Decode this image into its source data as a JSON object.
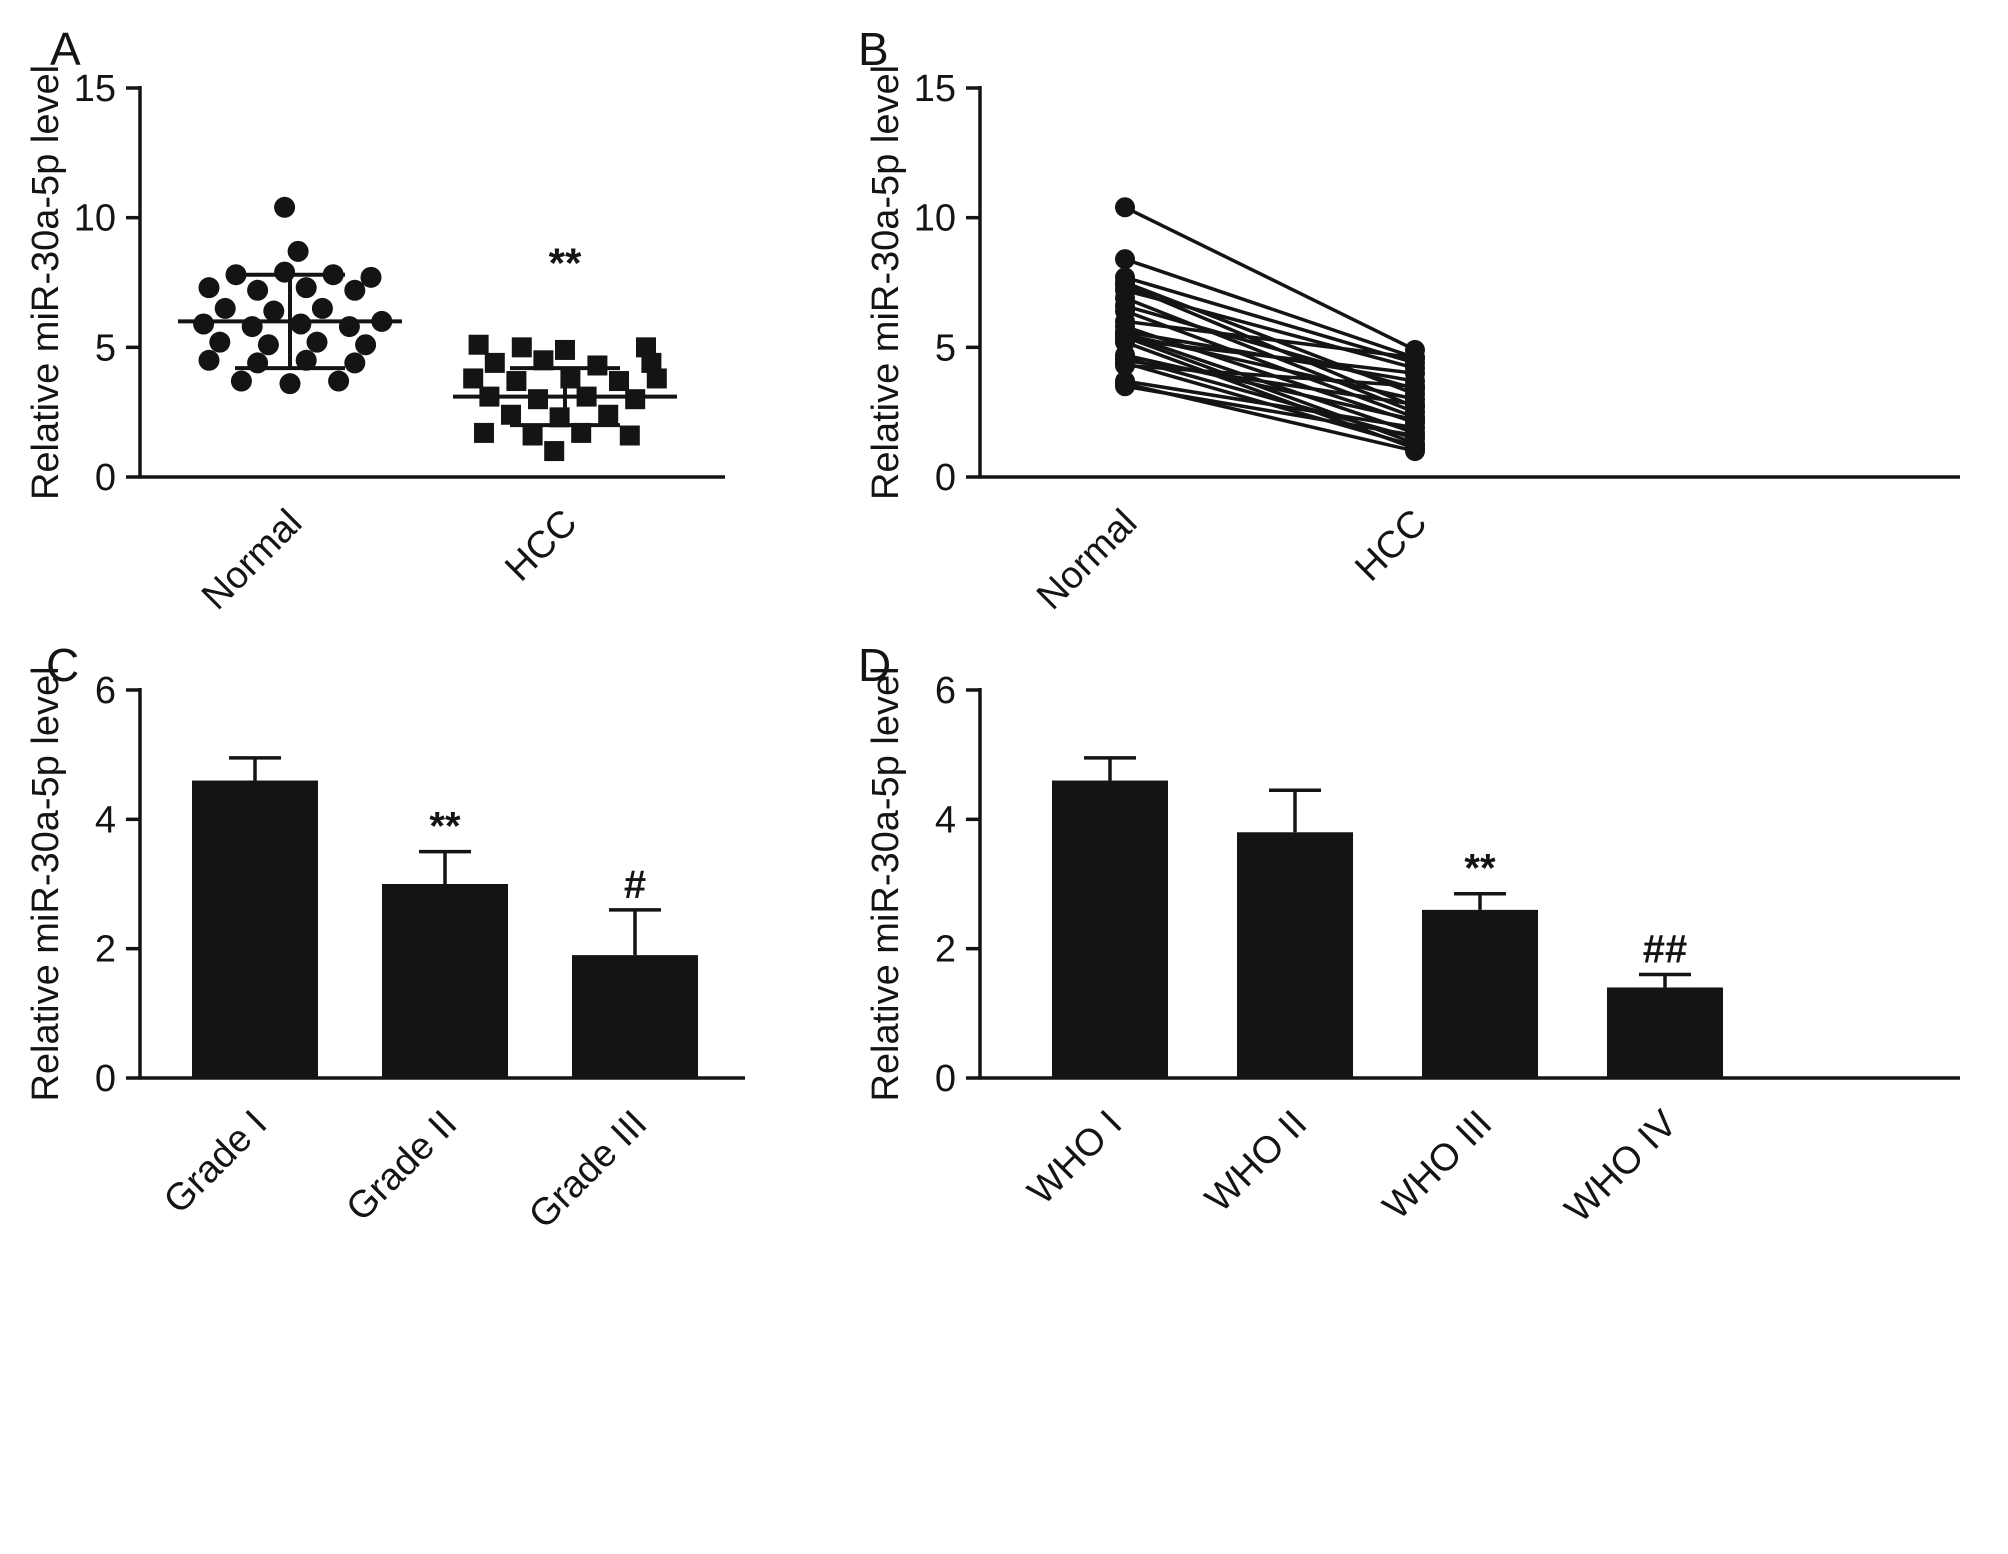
{
  "figure": {
    "panels": [
      {
        "label": "A"
      },
      {
        "label": "B"
      },
      {
        "label": "C"
      },
      {
        "label": "D"
      }
    ]
  },
  "chart_data": [
    {
      "panel": "A",
      "type": "scatter",
      "ylabel": "Relative miR-30a-5p level",
      "ylim": [
        0,
        15
      ],
      "yticks": [
        0,
        5,
        10,
        15
      ],
      "categories": [
        "Normal",
        "HCC"
      ],
      "series": [
        {
          "name": "Normal",
          "marker": "circle",
          "mean": 6.0,
          "sd_low": 4.2,
          "sd_high": 7.8,
          "points": [
            [
              -0.02,
              10.4
            ],
            [
              0.03,
              8.7
            ],
            [
              -0.2,
              7.8
            ],
            [
              -0.02,
              7.9
            ],
            [
              0.16,
              7.8
            ],
            [
              0.3,
              7.7
            ],
            [
              -0.3,
              7.3
            ],
            [
              -0.12,
              7.2
            ],
            [
              0.06,
              7.3
            ],
            [
              0.24,
              7.2
            ],
            [
              -0.24,
              6.5
            ],
            [
              -0.06,
              6.4
            ],
            [
              0.12,
              6.5
            ],
            [
              -0.32,
              5.9
            ],
            [
              -0.14,
              5.8
            ],
            [
              0.04,
              5.9
            ],
            [
              0.22,
              5.8
            ],
            [
              0.34,
              6.0
            ],
            [
              -0.26,
              5.2
            ],
            [
              -0.08,
              5.1
            ],
            [
              0.1,
              5.2
            ],
            [
              0.28,
              5.1
            ],
            [
              -0.3,
              4.5
            ],
            [
              -0.12,
              4.4
            ],
            [
              0.06,
              4.5
            ],
            [
              0.24,
              4.4
            ],
            [
              -0.18,
              3.7
            ],
            [
              0.0,
              3.6
            ],
            [
              0.18,
              3.7
            ]
          ]
        },
        {
          "name": "HCC",
          "marker": "square",
          "mean": 3.1,
          "sd_low": 2.0,
          "sd_high": 4.2,
          "points": [
            [
              -0.32,
              5.1
            ],
            [
              -0.16,
              5.0
            ],
            [
              0.0,
              4.9
            ],
            [
              0.3,
              5.0
            ],
            [
              -0.26,
              4.4
            ],
            [
              -0.08,
              4.5
            ],
            [
              0.12,
              4.3
            ],
            [
              0.32,
              4.4
            ],
            [
              -0.34,
              3.8
            ],
            [
              -0.18,
              3.7
            ],
            [
              0.02,
              3.8
            ],
            [
              0.2,
              3.7
            ],
            [
              0.34,
              3.8
            ],
            [
              -0.28,
              3.1
            ],
            [
              -0.1,
              3.0
            ],
            [
              0.08,
              3.1
            ],
            [
              0.26,
              3.0
            ],
            [
              -0.2,
              2.4
            ],
            [
              -0.02,
              2.3
            ],
            [
              0.16,
              2.4
            ],
            [
              -0.3,
              1.7
            ],
            [
              -0.12,
              1.6
            ],
            [
              0.06,
              1.7
            ],
            [
              0.24,
              1.6
            ],
            [
              -0.04,
              1.0
            ]
          ]
        }
      ],
      "annotations": [
        {
          "text": "**",
          "category": "HCC",
          "y": 7.7
        }
      ]
    },
    {
      "panel": "B",
      "type": "paired-line",
      "ylabel": "Relative miR-30a-5p level",
      "ylim": [
        0,
        15
      ],
      "yticks": [
        0,
        5,
        10,
        15
      ],
      "categories": [
        "Normal",
        "HCC"
      ],
      "pairs": [
        [
          10.4,
          4.9
        ],
        [
          8.4,
          4.6
        ],
        [
          7.7,
          4.4
        ],
        [
          7.5,
          3.2
        ],
        [
          7.4,
          2.7
        ],
        [
          7.2,
          4.2
        ],
        [
          6.9,
          2.5
        ],
        [
          6.6,
          3.4
        ],
        [
          6.4,
          2.3
        ],
        [
          6.0,
          4.6
        ],
        [
          5.8,
          2.1
        ],
        [
          5.6,
          3.7
        ],
        [
          5.5,
          1.7
        ],
        [
          5.5,
          3.0
        ],
        [
          5.4,
          1.3
        ],
        [
          5.3,
          4.0
        ],
        [
          5.2,
          1.1
        ],
        [
          4.7,
          2.2
        ],
        [
          4.6,
          1.5
        ],
        [
          4.5,
          2.8
        ],
        [
          4.4,
          1.2
        ],
        [
          4.3,
          3.5
        ],
        [
          3.7,
          1.9
        ],
        [
          3.6,
          1.0
        ],
        [
          3.5,
          1.6
        ]
      ]
    },
    {
      "panel": "C",
      "type": "bar",
      "ylabel": "Relative miR-30a-5p level",
      "ylim": [
        0,
        6
      ],
      "yticks": [
        0,
        2,
        4,
        6
      ],
      "categories": [
        "Grade I",
        "Grade II",
        "Grade III"
      ],
      "values": [
        4.6,
        3.0,
        1.9
      ],
      "errors": [
        0.35,
        0.5,
        0.7
      ],
      "annotations": [
        "",
        "**",
        "#"
      ]
    },
    {
      "panel": "D",
      "type": "bar",
      "ylabel": "Relative miR-30a-5p level",
      "ylim": [
        0,
        6
      ],
      "yticks": [
        0,
        2,
        4,
        6
      ],
      "categories": [
        "WHO I",
        "WHO II",
        "WHO III",
        "WHO IV"
      ],
      "values": [
        4.6,
        3.8,
        2.6,
        1.4
      ],
      "errors": [
        0.35,
        0.65,
        0.25,
        0.2
      ],
      "annotations": [
        "",
        "",
        "**",
        "##"
      ]
    }
  ],
  "style": {
    "ink_color": "#141414",
    "background": "#ffffff"
  }
}
